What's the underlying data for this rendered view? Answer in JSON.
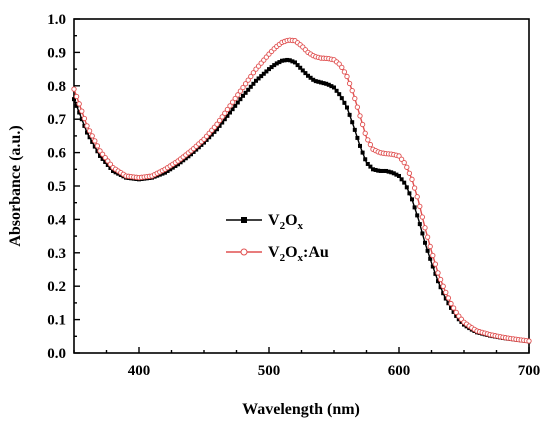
{
  "chart_data": {
    "type": "line",
    "title": "",
    "xlabel": "Wavelength (nm)",
    "ylabel": "Absorbance (a.u.)",
    "xlim": [
      350,
      700
    ],
    "ylim": [
      0.0,
      1.0
    ],
    "xticks": [
      "400",
      "500",
      "600",
      "700"
    ],
    "yticks": [
      "0.0",
      "0.1",
      "0.2",
      "0.3",
      "0.4",
      "0.5",
      "0.6",
      "0.7",
      "0.8",
      "0.9",
      "1.0"
    ],
    "grid": false,
    "legend_position": "center-left",
    "series": [
      {
        "name": "V2Ox",
        "legend": {
          "main1": "V",
          "sub1": "2",
          "main2": "O",
          "sub2": "x",
          "suffix": ""
        },
        "color": "#000000",
        "marker": "filled-square",
        "x": [
          350,
          360,
          370,
          380,
          390,
          400,
          410,
          420,
          430,
          440,
          450,
          460,
          470,
          480,
          490,
          500,
          505,
          510,
          515,
          520,
          525,
          530,
          535,
          540,
          545,
          550,
          555,
          560,
          565,
          570,
          575,
          580,
          585,
          590,
          595,
          600,
          605,
          610,
          615,
          620,
          625,
          630,
          635,
          640,
          645,
          650,
          655,
          660,
          670,
          680,
          690,
          700
        ],
        "y": [
          0.76,
          0.66,
          0.59,
          0.545,
          0.525,
          0.52,
          0.525,
          0.54,
          0.565,
          0.595,
          0.63,
          0.67,
          0.72,
          0.77,
          0.815,
          0.85,
          0.865,
          0.875,
          0.878,
          0.87,
          0.85,
          0.83,
          0.815,
          0.81,
          0.805,
          0.795,
          0.77,
          0.735,
          0.68,
          0.62,
          0.57,
          0.55,
          0.545,
          0.545,
          0.54,
          0.53,
          0.505,
          0.46,
          0.4,
          0.33,
          0.27,
          0.215,
          0.17,
          0.135,
          0.105,
          0.085,
          0.072,
          0.062,
          0.052,
          0.045,
          0.04,
          0.035
        ]
      },
      {
        "name": "V2Ox:Au",
        "legend": {
          "main1": "V",
          "sub1": "2",
          "main2": "O",
          "sub2": "x",
          "suffix": ":Au"
        },
        "color": "#e05050",
        "marker": "open-circle",
        "x": [
          350,
          360,
          370,
          380,
          390,
          400,
          410,
          420,
          430,
          440,
          450,
          460,
          470,
          480,
          490,
          500,
          505,
          510,
          515,
          520,
          525,
          530,
          535,
          540,
          545,
          550,
          555,
          560,
          565,
          570,
          575,
          580,
          585,
          590,
          595,
          600,
          605,
          610,
          615,
          620,
          625,
          630,
          635,
          640,
          645,
          650,
          655,
          660,
          670,
          680,
          690,
          700
        ],
        "y": [
          0.79,
          0.68,
          0.605,
          0.555,
          0.53,
          0.525,
          0.53,
          0.55,
          0.575,
          0.605,
          0.64,
          0.685,
          0.74,
          0.795,
          0.85,
          0.895,
          0.915,
          0.93,
          0.937,
          0.935,
          0.92,
          0.9,
          0.888,
          0.883,
          0.882,
          0.878,
          0.862,
          0.828,
          0.775,
          0.71,
          0.645,
          0.61,
          0.6,
          0.597,
          0.595,
          0.59,
          0.565,
          0.52,
          0.455,
          0.375,
          0.305,
          0.24,
          0.19,
          0.148,
          0.115,
          0.092,
          0.078,
          0.066,
          0.055,
          0.047,
          0.041,
          0.036
        ]
      }
    ]
  }
}
